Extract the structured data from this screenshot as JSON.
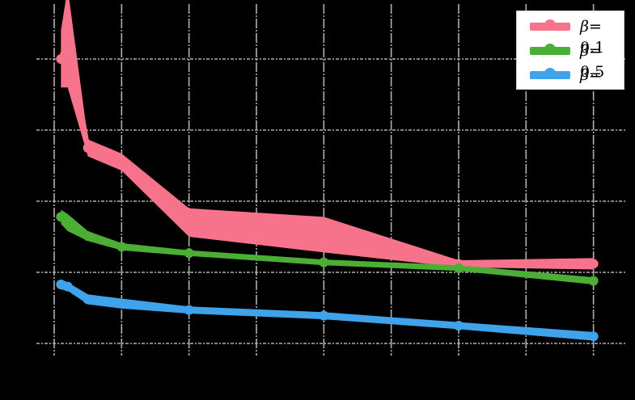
{
  "chart_data": {
    "type": "line",
    "title": "",
    "xlabel": "",
    "ylabel": "",
    "x_ticks": [
      0,
      1,
      2,
      3,
      4,
      5,
      6,
      7,
      8
    ],
    "y_ticks": [
      0,
      1,
      2,
      3,
      4
    ],
    "xlim": [
      0,
      8.4
    ],
    "ylim": [
      -0.2,
      4.7
    ],
    "grid": true,
    "legend_position": "upper right",
    "tick_labels_visible": false,
    "x": [
      0.1,
      0.2,
      0.5,
      1,
      2,
      4,
      6,
      8
    ],
    "series": [
      {
        "name": "β=0.1",
        "color": "#f7728b",
        "values": [
          4.0,
          4.3,
          2.75,
          2.55,
          1.7,
          1.53,
          1.12,
          1.12
        ],
        "band_halfwidth": [
          0.4,
          0.7,
          0.12,
          0.12,
          0.2,
          0.25,
          0.05,
          0.08
        ]
      },
      {
        "name": "β=0.5",
        "color": "#4caf35",
        "values": [
          1.78,
          1.7,
          1.51,
          1.36,
          1.27,
          1.14,
          1.06,
          0.88
        ],
        "band_halfwidth": [
          0.1,
          0.12,
          0.07,
          0.05,
          0.04,
          0.04,
          0.04,
          0.05
        ]
      },
      {
        "name": "β=1.0",
        "color": "#3ea3ea",
        "values": [
          0.83,
          0.8,
          0.62,
          0.56,
          0.47,
          0.39,
          0.25,
          0.1
        ],
        "band_halfwidth": [
          0.07,
          0.06,
          0.07,
          0.07,
          0.05,
          0.05,
          0.05,
          0.06
        ]
      }
    ]
  },
  "legend": {
    "items": [
      {
        "prefix": "β",
        "suffix": "= 0.1",
        "color": "#f7728b"
      },
      {
        "prefix": "β",
        "suffix": "= 0.5",
        "color": "#4caf35"
      },
      {
        "prefix": "β",
        "suffix": "= 1.0",
        "color": "#3ea3ea"
      }
    ]
  }
}
